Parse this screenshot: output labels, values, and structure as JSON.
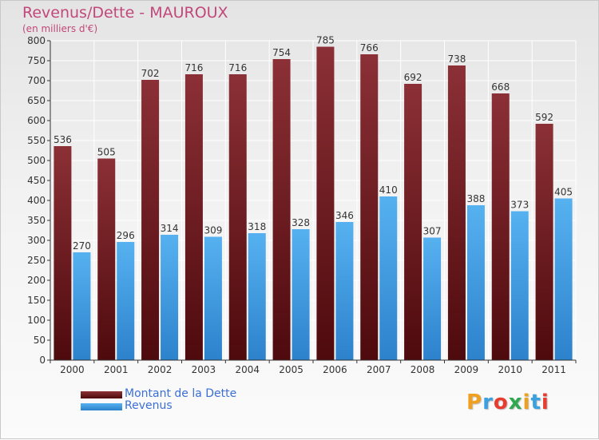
{
  "chart_data": {
    "type": "bar",
    "title": "Revenus/Dette - MAUROUX",
    "subtitle": "(en milliers d'€)",
    "xlabel": "",
    "ylabel": "",
    "ylim": [
      0,
      800
    ],
    "yticks": [
      0,
      50,
      100,
      150,
      200,
      250,
      300,
      350,
      400,
      450,
      500,
      550,
      600,
      650,
      700,
      750,
      800
    ],
    "grid": true,
    "categories": [
      "2000",
      "2001",
      "2002",
      "2003",
      "2004",
      "2005",
      "2006",
      "2007",
      "2008",
      "2009",
      "2010",
      "2011"
    ],
    "series": [
      {
        "name": "Montant de la Dette",
        "color": "#7a1e24",
        "values": [
          536,
          505,
          702,
          716,
          716,
          754,
          785,
          766,
          692,
          738,
          668,
          592
        ]
      },
      {
        "name": "Revenus",
        "color": "#4aa3e6",
        "values": [
          270,
          296,
          314,
          309,
          318,
          328,
          346,
          410,
          307,
          388,
          373,
          405
        ]
      }
    ],
    "legend_position": "bottom-left"
  },
  "logo": {
    "letters": [
      "P",
      "r",
      "o",
      "x",
      "i",
      "t",
      "i"
    ],
    "colors": [
      "#f0a020",
      "#3aa0e0",
      "#e83d2e",
      "#2fa84f",
      "#f0a020",
      "#3aa0e0",
      "#e83d2e"
    ]
  }
}
